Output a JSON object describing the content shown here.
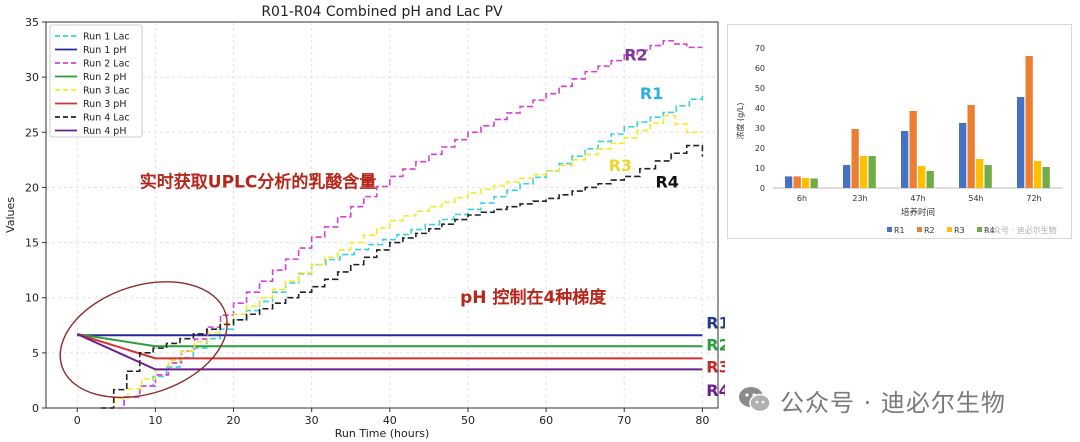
{
  "chart_data": [
    {
      "type": "line",
      "title": "R01-R04 Combined pH and Lac PV",
      "xlabel": "Run Time (hours)",
      "ylabel": "Values",
      "xlim": [
        -4,
        82
      ],
      "ylim": [
        0,
        35
      ],
      "xticks": [
        0,
        10,
        20,
        30,
        40,
        50,
        60,
        70,
        80
      ],
      "yticks": [
        0,
        5,
        10,
        15,
        20,
        25,
        30,
        35
      ],
      "grid": true,
      "legend": "top-left",
      "series": [
        {
          "name": "Run 1 Lac",
          "color": "#3ccfe0",
          "dash": "dashed",
          "x": [
            4,
            8,
            20,
            30,
            50,
            60,
            70,
            75,
            80
          ],
          "y": [
            0,
            2,
            8,
            13,
            18,
            21.5,
            25.5,
            26.8,
            28.6
          ]
        },
        {
          "name": "Run 1 pH",
          "color": "#2a2aa0",
          "dash": "solid",
          "x": [
            0,
            80
          ],
          "y": [
            6.6,
            6.6
          ]
        },
        {
          "name": "Run 2 Lac",
          "color": "#d63fd6",
          "dash": "dashed",
          "x": [
            4,
            10,
            20,
            30,
            40,
            50,
            60,
            65,
            70,
            75,
            78,
            80
          ],
          "y": [
            0,
            3,
            9.5,
            15.5,
            21,
            25,
            28.5,
            30.5,
            32,
            33.3,
            32.7,
            32.7
          ]
        },
        {
          "name": "Run 2 pH",
          "color": "#2e9e3a",
          "dash": "solid",
          "x": [
            0,
            10,
            80
          ],
          "y": [
            6.7,
            5.6,
            5.6
          ]
        },
        {
          "name": "Run 3 Lac",
          "color": "#f5e928",
          "dash": "dashed",
          "x": [
            3,
            10,
            20,
            30,
            40,
            50,
            60,
            70,
            75,
            78,
            80
          ],
          "y": [
            0,
            3.5,
            8.5,
            13,
            17,
            19.5,
            21.5,
            24.5,
            26.5,
            25,
            25
          ]
        },
        {
          "name": "Run 3 pH",
          "color": "#d23232",
          "dash": "solid",
          "x": [
            0,
            10,
            80
          ],
          "y": [
            6.7,
            4.5,
            4.5
          ]
        },
        {
          "name": "Run 4 Lac",
          "color": "#222222",
          "dash": "dashed",
          "x": [
            3,
            8,
            20,
            30,
            40,
            50,
            60,
            70,
            78,
            80
          ],
          "y": [
            0,
            5,
            8,
            11,
            15,
            17.5,
            19,
            21,
            23.8,
            22.8
          ]
        },
        {
          "name": "Run 4 pH",
          "color": "#6a1f8c",
          "dash": "solid",
          "x": [
            0,
            10,
            80
          ],
          "y": [
            6.7,
            3.5,
            3.5
          ]
        }
      ],
      "annotations": [
        {
          "text": "R2",
          "color": "#7b3a96",
          "anchor": [
            70,
            31.5
          ]
        },
        {
          "text": "R1",
          "color": "#2bb1de",
          "anchor": [
            72,
            28
          ]
        },
        {
          "text": "R3",
          "color": "#ecd82a",
          "anchor": [
            68,
            21.5
          ]
        },
        {
          "text": "R4",
          "color": "#111111",
          "anchor": [
            74,
            20
          ]
        },
        {
          "text": "实时获取UPLC分析的乳酸含量",
          "color": "#b5271b",
          "anchor": [
            8,
            20
          ]
        },
        {
          "text": "pH 控制在4种梯度",
          "color": "#b5271b",
          "anchor": [
            49,
            9.5
          ]
        },
        {
          "text": "R1",
          "color": "#243b8a",
          "anchor": [
            80.5,
            7.2
          ]
        },
        {
          "text": "R2",
          "color": "#2e9e3a",
          "anchor": [
            80.5,
            5.2
          ]
        },
        {
          "text": "R3",
          "color": "#c62828",
          "anchor": [
            80.5,
            3.2
          ]
        },
        {
          "text": "R4",
          "color": "#6a1f8c",
          "anchor": [
            80.5,
            1.1
          ]
        }
      ]
    },
    {
      "type": "bar",
      "xlabel": "培养时间",
      "ylabel": "浓度 (g/L)",
      "ylim": [
        0,
        75
      ],
      "yticks": [
        0,
        10,
        20,
        30,
        40,
        50,
        60,
        70
      ],
      "categories": [
        "6h",
        "23h",
        "47h",
        "54h",
        "72h"
      ],
      "legend": "bottom",
      "series": [
        {
          "name": "R1",
          "color": "#4472c4",
          "values": [
            5.8,
            11.5,
            28.5,
            32.5,
            45.5
          ]
        },
        {
          "name": "R2",
          "color": "#ed7d31",
          "values": [
            5.8,
            29.5,
            38.5,
            41.5,
            66
          ]
        },
        {
          "name": "R3",
          "color": "#ffc000",
          "values": [
            5.0,
            16,
            11,
            14.5,
            13.5
          ]
        },
        {
          "name": "R4",
          "color": "#70ad47",
          "values": [
            4.8,
            16,
            8.5,
            11.5,
            10.5
          ]
        }
      ]
    }
  ],
  "watermark": {
    "text": "公众号 · 迪必尔生物",
    "small_text": "公众号 · 迪必尔生物",
    "icon": "wechat-icon"
  }
}
